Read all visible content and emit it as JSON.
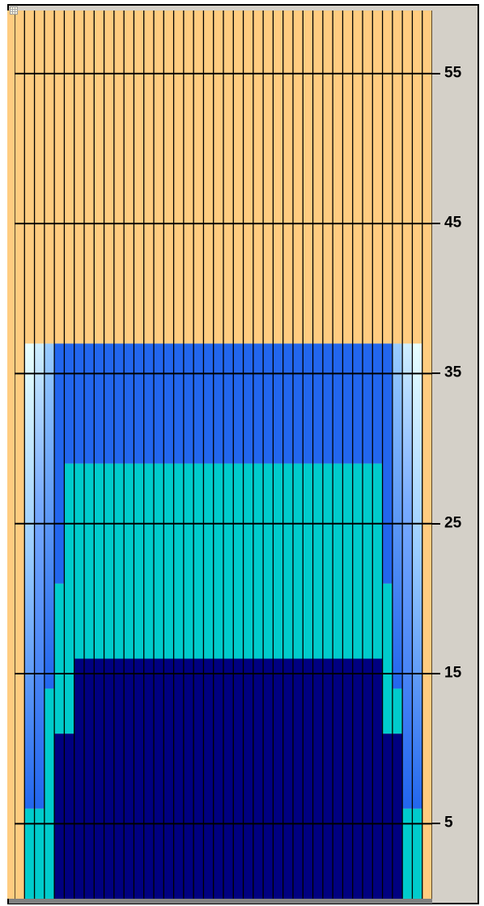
{
  "chart_data": {
    "type": "heatmap",
    "title": "",
    "xlabel": "",
    "ylabel": "",
    "y_axis": {
      "side": "right",
      "ticks": [
        "5",
        "15",
        "25",
        "35",
        "45",
        "55"
      ],
      "tick_values": [
        5,
        15,
        25,
        35,
        45,
        55
      ],
      "ylim": [
        0,
        59.2
      ]
    },
    "columns": 42,
    "background_color": "#ffcc80",
    "colors": {
      "dark_navy": "#000080",
      "teal": "#00cccc",
      "royal_blue": "#2266ee",
      "white_edge": "#e8ffff",
      "grid_line": "#000000",
      "panel": "#d4d0c8"
    },
    "bands": [
      {
        "name": "outer-gradient-left",
        "columns": [
          1,
          2
        ],
        "gradient": [
          "#e8ffff",
          "#2266ee"
        ],
        "y_range": [
          6,
          37
        ],
        "color_below": "#00cccc"
      },
      {
        "name": "outer-gradient-right",
        "columns": [
          38,
          39
        ],
        "gradient": [
          "#e8ffff",
          "#2266ee"
        ],
        "y_range": [
          6,
          37
        ],
        "color_below": "#00cccc"
      },
      {
        "name": "blue-plateau",
        "color": "#2266ee",
        "top": 37,
        "columns": [
          3,
          37
        ]
      },
      {
        "name": "teal-region",
        "color": "#00cccc",
        "top_center": 29,
        "top_side": 21,
        "top_step2": 14
      },
      {
        "name": "navy-core",
        "color": "#000080",
        "top_center": 16,
        "top_side": 11
      }
    ],
    "column_profile": [
      {
        "col": 1,
        "blue_top": 37,
        "teal_top": 6,
        "navy_top": 0
      },
      {
        "col": 2,
        "blue_top": 37,
        "teal_top": 6,
        "navy_top": 0
      },
      {
        "col": 3,
        "blue_top": 37,
        "teal_top": 14,
        "navy_top": 0
      },
      {
        "col": 4,
        "blue_top": 37,
        "teal_top": 21,
        "navy_top": 11
      },
      {
        "col": 5,
        "blue_top": 37,
        "teal_top": 29,
        "navy_top": 11
      },
      {
        "col": 6,
        "blue_top": 37,
        "teal_top": 29,
        "navy_top": 16
      },
      {
        "col": 36,
        "blue_top": 37,
        "teal_top": 29,
        "navy_top": 16
      },
      {
        "col": 37,
        "blue_top": 37,
        "teal_top": 21,
        "navy_top": 11
      },
      {
        "col": 38,
        "blue_top": 37,
        "teal_top": 14,
        "navy_top": 11
      },
      {
        "col": 39,
        "blue_top": 37,
        "teal_top": 6,
        "navy_top": 0
      },
      {
        "col": 40,
        "blue_top": 37,
        "teal_top": 6,
        "navy_top": 0
      }
    ]
  },
  "icons": {
    "corner": "grid-icon"
  }
}
